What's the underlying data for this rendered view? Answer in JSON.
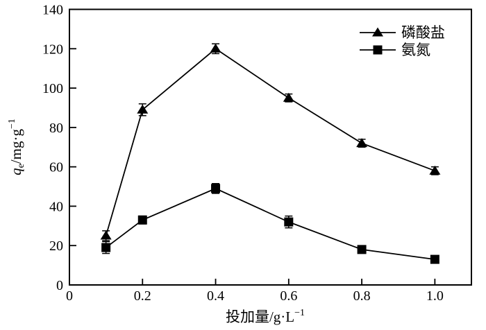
{
  "chart_data": {
    "type": "line",
    "title": "",
    "color": "#000000",
    "grid": false,
    "legend_position": "top-right",
    "xlabel": {
      "text": "投加量/g·L",
      "superscript": "−1"
    },
    "ylabel": {
      "variable": "q",
      "subscript": "e",
      "rest": "/mg·g",
      "superscript": "−1"
    },
    "xlim": [
      0,
      1.1
    ],
    "ylim": [
      0,
      140
    ],
    "xticks": [
      0,
      0.2,
      0.4,
      0.6,
      0.8,
      1.0
    ],
    "xtick_labels": [
      "0",
      "0.2",
      "0.4",
      "0.6",
      "0.8",
      "1.0"
    ],
    "yticks": [
      0,
      20,
      40,
      60,
      80,
      100,
      120,
      140
    ],
    "ytick_labels": [
      "0",
      "20",
      "40",
      "60",
      "80",
      "100",
      "120",
      "140"
    ],
    "x": [
      0.1,
      0.2,
      0.4,
      0.6,
      0.8,
      1.0
    ],
    "series": [
      {
        "id": "phosphate",
        "name": "磷酸盐",
        "marker": "triangle",
        "values": [
          25,
          89,
          120,
          95,
          72,
          58
        ],
        "errors": [
          2.5,
          3,
          2.5,
          2,
          2,
          2
        ]
      },
      {
        "id": "ammonia",
        "name": "氨氮",
        "marker": "square",
        "values": [
          19,
          33,
          49,
          32,
          18,
          13
        ],
        "errors": [
          3,
          2,
          2.5,
          3,
          1.5,
          1.5
        ]
      }
    ]
  }
}
